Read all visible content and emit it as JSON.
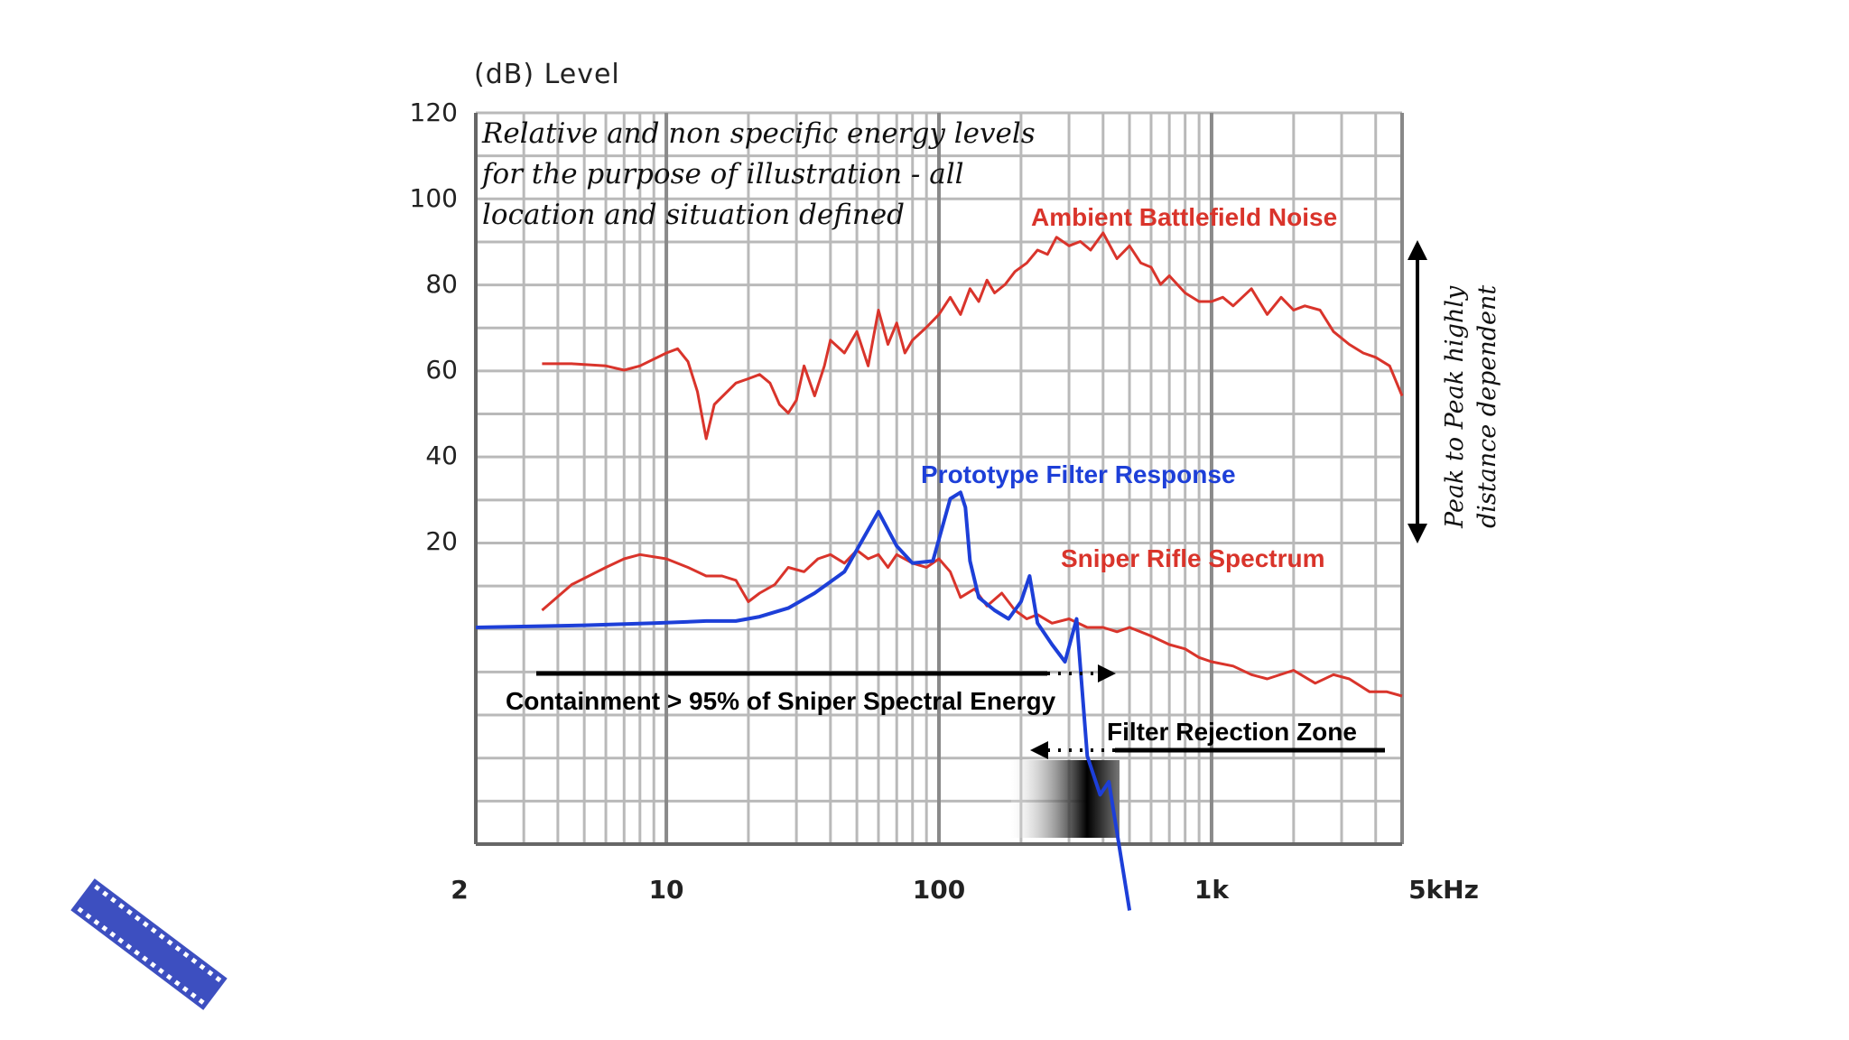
{
  "chart_data": {
    "type": "line",
    "ylabel": "(dB)  Level",
    "yticks": [
      "120",
      "100",
      "80",
      "60",
      "40",
      "20"
    ],
    "ylim": [
      -70,
      120
    ],
    "xscale": "log",
    "xlim": [
      2,
      5000
    ],
    "xticks": [
      {
        "value": 2,
        "label": "2"
      },
      {
        "value": 10,
        "label": "10"
      },
      {
        "value": 100,
        "label": "100"
      },
      {
        "value": 1000,
        "label": "1k"
      },
      {
        "value": 5000,
        "label": "5kHz"
      }
    ],
    "grid": true,
    "note_lines": [
      "Relative and non specific energy levels",
      "for the purpose of illustration - all",
      "location and situation  defined"
    ],
    "series": [
      {
        "name": "Ambient Battlefield Noise",
        "color": "#d9342b",
        "x": [
          3.5,
          4.5,
          6,
          7,
          8,
          10,
          11,
          12,
          13,
          14,
          15,
          18,
          20,
          22,
          24,
          26,
          28,
          30,
          32,
          35,
          38,
          40,
          45,
          50,
          55,
          60,
          65,
          70,
          75,
          80,
          90,
          100,
          110,
          120,
          130,
          140,
          150,
          160,
          175,
          190,
          210,
          230,
          250,
          270,
          300,
          330,
          360,
          400,
          450,
          500,
          550,
          600,
          650,
          700,
          800,
          900,
          1000,
          1100,
          1200,
          1400,
          1600,
          1800,
          2000,
          2200,
          2500,
          2800,
          3200,
          3600,
          4000,
          4500,
          5000
        ],
        "y": [
          61.5,
          61.5,
          61,
          60,
          61,
          64,
          65,
          62,
          55,
          44,
          52,
          57,
          58,
          59,
          57,
          52,
          50,
          53,
          61,
          54,
          61,
          67,
          64,
          69,
          61,
          74,
          66,
          71,
          64,
          67,
          70,
          73,
          77,
          73,
          79,
          76,
          81,
          78,
          80,
          83,
          85,
          88,
          87,
          91,
          89,
          90,
          88,
          92,
          86,
          89,
          85,
          84,
          80,
          82,
          78,
          76,
          76,
          77,
          75,
          79,
          73,
          77,
          74,
          75,
          74,
          69,
          66,
          64,
          63,
          61,
          54
        ]
      },
      {
        "name": "Sniper Rifle Spectrum",
        "color": "#d9342b",
        "x": [
          3.5,
          4.5,
          6,
          7,
          8,
          10,
          12,
          14,
          16,
          18,
          20,
          22,
          25,
          28,
          32,
          36,
          40,
          45,
          50,
          55,
          60,
          65,
          70,
          80,
          90,
          100,
          110,
          120,
          135,
          150,
          170,
          190,
          210,
          230,
          260,
          300,
          350,
          400,
          450,
          500,
          600,
          700,
          800,
          900,
          1000,
          1200,
          1400,
          1600,
          2000,
          2400,
          2800,
          3200,
          3800,
          4400,
          5000
        ],
        "y": [
          4,
          10,
          14,
          16,
          17,
          16,
          14,
          12,
          12,
          11,
          6,
          8,
          10,
          14,
          13,
          16,
          17,
          15,
          18,
          16,
          17,
          14,
          17,
          15,
          14,
          16,
          13,
          7,
          9,
          5,
          8,
          4,
          2,
          3,
          1,
          2,
          0,
          0,
          -1,
          0,
          -2,
          -4,
          -5,
          -7,
          -8,
          -9,
          -11,
          -12,
          -10,
          -13,
          -11,
          -12,
          -15,
          -15,
          -16
        ]
      },
      {
        "name": "Prototype Filter Response",
        "color": "#1d3fd8",
        "x": [
          2,
          5,
          9,
          14,
          18,
          22,
          28,
          35,
          45,
          52,
          60,
          70,
          80,
          95,
          110,
          120,
          125,
          130,
          140,
          160,
          180,
          200,
          215,
          230,
          260,
          290,
          320,
          350,
          390,
          420,
          500
        ],
        "y": [
          0,
          0.5,
          1,
          1.5,
          1.5,
          2.5,
          4.5,
          8,
          13,
          20,
          27,
          19,
          15,
          15.5,
          30,
          31.5,
          28,
          15.5,
          7,
          4,
          2,
          6,
          12,
          1,
          -4,
          -8,
          2,
          -30,
          -39,
          -36,
          -66
        ]
      }
    ],
    "annotations": {
      "ambient_label": "Ambient Battlefield Noise",
      "filter_label": "Prototype Filter Response",
      "sniper_label": "Sniper Rifle Spectrum",
      "containment": "Containment > 95% of Sniper Spectral Energy",
      "rejection": "Filter Rejection Zone",
      "peak_note_line1": "Peak to Peak highly",
      "peak_note_line2": "distance dependent"
    },
    "label_colors": {
      "red": "#d9342b",
      "blue": "#1d3fd8",
      "black": "#000000"
    }
  }
}
